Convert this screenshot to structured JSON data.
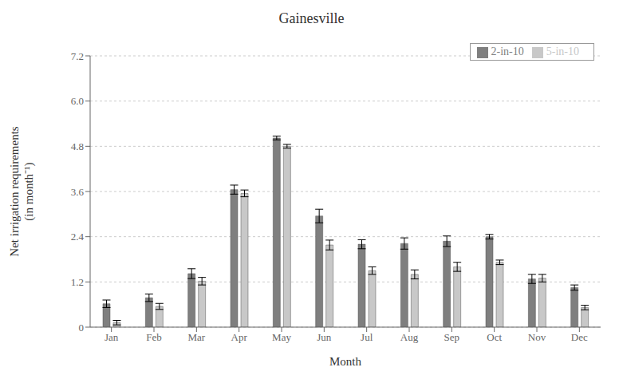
{
  "chart_data": {
    "type": "bar",
    "title": "Gainesville",
    "xlabel": "Month",
    "ylabel": "Net irrigation requirements\n(in month⁻¹)",
    "categories": [
      "Jan",
      "Feb",
      "Mar",
      "Apr",
      "May",
      "Jun",
      "Jul",
      "Aug",
      "Sep",
      "Oct",
      "Nov",
      "Dec"
    ],
    "series": [
      {
        "name": "2-in-10",
        "color": "#7f7f7f",
        "values": [
          0.62,
          0.78,
          1.42,
          3.65,
          5.02,
          2.95,
          2.2,
          2.22,
          2.28,
          2.4,
          1.28,
          1.05
        ],
        "error": [
          0.1,
          0.1,
          0.13,
          0.12,
          0.05,
          0.18,
          0.12,
          0.15,
          0.14,
          0.06,
          0.12,
          0.07
        ]
      },
      {
        "name": "5-in-10",
        "color": "#c8c8c8",
        "values": [
          0.12,
          0.55,
          1.22,
          3.55,
          4.8,
          2.18,
          1.5,
          1.4,
          1.6,
          1.72,
          1.3,
          0.52
        ],
        "error": [
          0.06,
          0.08,
          0.1,
          0.09,
          0.05,
          0.13,
          0.1,
          0.12,
          0.12,
          0.06,
          0.1,
          0.06
        ]
      }
    ],
    "ylim": [
      0,
      7.2
    ],
    "yticks": [
      0,
      1.2,
      2.4,
      3.6,
      4.8,
      {
        "value": 6.0,
        "label": "6.0"
      },
      7.2
    ],
    "grid": true,
    "legend": "upper right"
  }
}
